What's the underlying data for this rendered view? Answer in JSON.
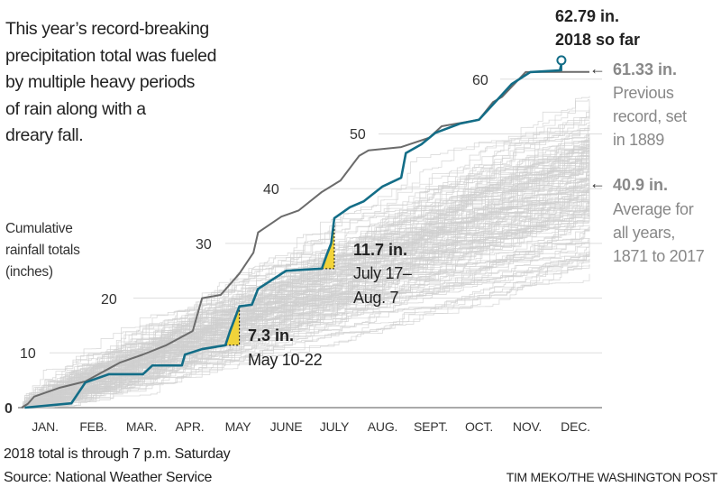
{
  "chart_data": {
    "type": "line",
    "headline": [
      "This year’s record-breaking",
      "precipitation total was fueled",
      "by multiple heavy periods",
      "of rain along with a",
      "dreary fall."
    ],
    "ylabel": [
      "Cumulative",
      "rainfall totals",
      "(inches)"
    ],
    "ylim": [
      0,
      65
    ],
    "xlim_days": [
      0,
      365
    ],
    "y_ticks": [
      0,
      10,
      20,
      30,
      40,
      50,
      60
    ],
    "y_tick_labels": [
      "0",
      "10",
      "20",
      "30",
      "40",
      "50",
      "60"
    ],
    "x_tick_labels": [
      "JAN.",
      "FEB.",
      "MAR.",
      "APR.",
      "MAY",
      "JUNE",
      "JULY",
      "AUG.",
      "SEPT.",
      "OCT.",
      "NOV.",
      "DEC."
    ],
    "colors": {
      "y2018": "#136d87",
      "y1889": "#6b6b6b",
      "background": "#cfcfcf",
      "highlight": "#f1d33a",
      "grid": "#dddddd"
    },
    "series": [
      {
        "name": "2018",
        "points": [
          [
            2,
            0
          ],
          [
            32,
            0.8
          ],
          [
            41,
            4.6
          ],
          [
            56,
            6.1
          ],
          [
            78,
            6.1
          ],
          [
            84,
            7.7
          ],
          [
            103,
            7.7
          ],
          [
            105,
            9.7
          ],
          [
            116,
            10.7
          ],
          [
            131,
            11.4
          ],
          [
            134,
            14
          ],
          [
            140,
            18.5
          ],
          [
            148,
            18.8
          ],
          [
            152,
            21.7
          ],
          [
            170,
            25
          ],
          [
            193,
            25.4
          ],
          [
            196,
            27.8
          ],
          [
            199,
            30
          ],
          [
            201,
            34.6
          ],
          [
            211,
            36.6
          ],
          [
            220,
            37.7
          ],
          [
            232,
            40.4
          ],
          [
            244,
            42
          ],
          [
            247,
            46.5
          ],
          [
            257,
            48.1
          ],
          [
            266,
            50.2
          ],
          [
            282,
            51.9
          ],
          [
            294,
            52.6
          ],
          [
            306,
            56.3
          ],
          [
            315,
            59.1
          ],
          [
            327,
            61.3
          ],
          [
            346,
            61.6
          ],
          [
            347,
            62.79
          ]
        ]
      },
      {
        "name": "1889",
        "points": [
          [
            0,
            0
          ],
          [
            4,
            0.7
          ],
          [
            8,
            2
          ],
          [
            24,
            3.6
          ],
          [
            41,
            4.8
          ],
          [
            63,
            8.2
          ],
          [
            78,
            9.7
          ],
          [
            93,
            11.4
          ],
          [
            110,
            14
          ],
          [
            116,
            20
          ],
          [
            128,
            20.6
          ],
          [
            140,
            24.5
          ],
          [
            149,
            28.3
          ],
          [
            152,
            32
          ],
          [
            167,
            34.9
          ],
          [
            178,
            36
          ],
          [
            193,
            39.4
          ],
          [
            205,
            41.5
          ],
          [
            217,
            46
          ],
          [
            223,
            47
          ],
          [
            244,
            47.6
          ],
          [
            262,
            49.3
          ],
          [
            270,
            51.4
          ],
          [
            294,
            52.6
          ],
          [
            303,
            55.8
          ],
          [
            309,
            56.8
          ],
          [
            324,
            61.3
          ],
          [
            365,
            61.33
          ]
        ]
      }
    ],
    "background_series": {
      "count": 147,
      "years": "1871 to 2017",
      "mean_total": 40.9
    },
    "highlights": [
      {
        "start_day": 131,
        "end_day": 140,
        "amount": "7.3 in.",
        "dates": "May 10-22"
      },
      {
        "start_day": 193,
        "end_day": 201,
        "amount": "11.7 in.",
        "dates_line1": "July 17–",
        "dates_line2": "Aug. 7"
      }
    ],
    "annotations": {
      "current": {
        "value": "62.79 in.",
        "label": "2018 so far"
      },
      "record": {
        "value": "61.33 in.",
        "lines": [
          "Previous",
          "record, set",
          "in 1889"
        ]
      },
      "average": {
        "value": "40.9 in.",
        "lines": [
          "Average for",
          "all years,",
          "1871 to 2017"
        ]
      }
    },
    "arrow": "←",
    "footnote": "2018 total is through 7 p.m. Saturday",
    "source": "Source: National Weather Service",
    "credit": "TIM MEKO/THE WASHINGTON POST"
  }
}
